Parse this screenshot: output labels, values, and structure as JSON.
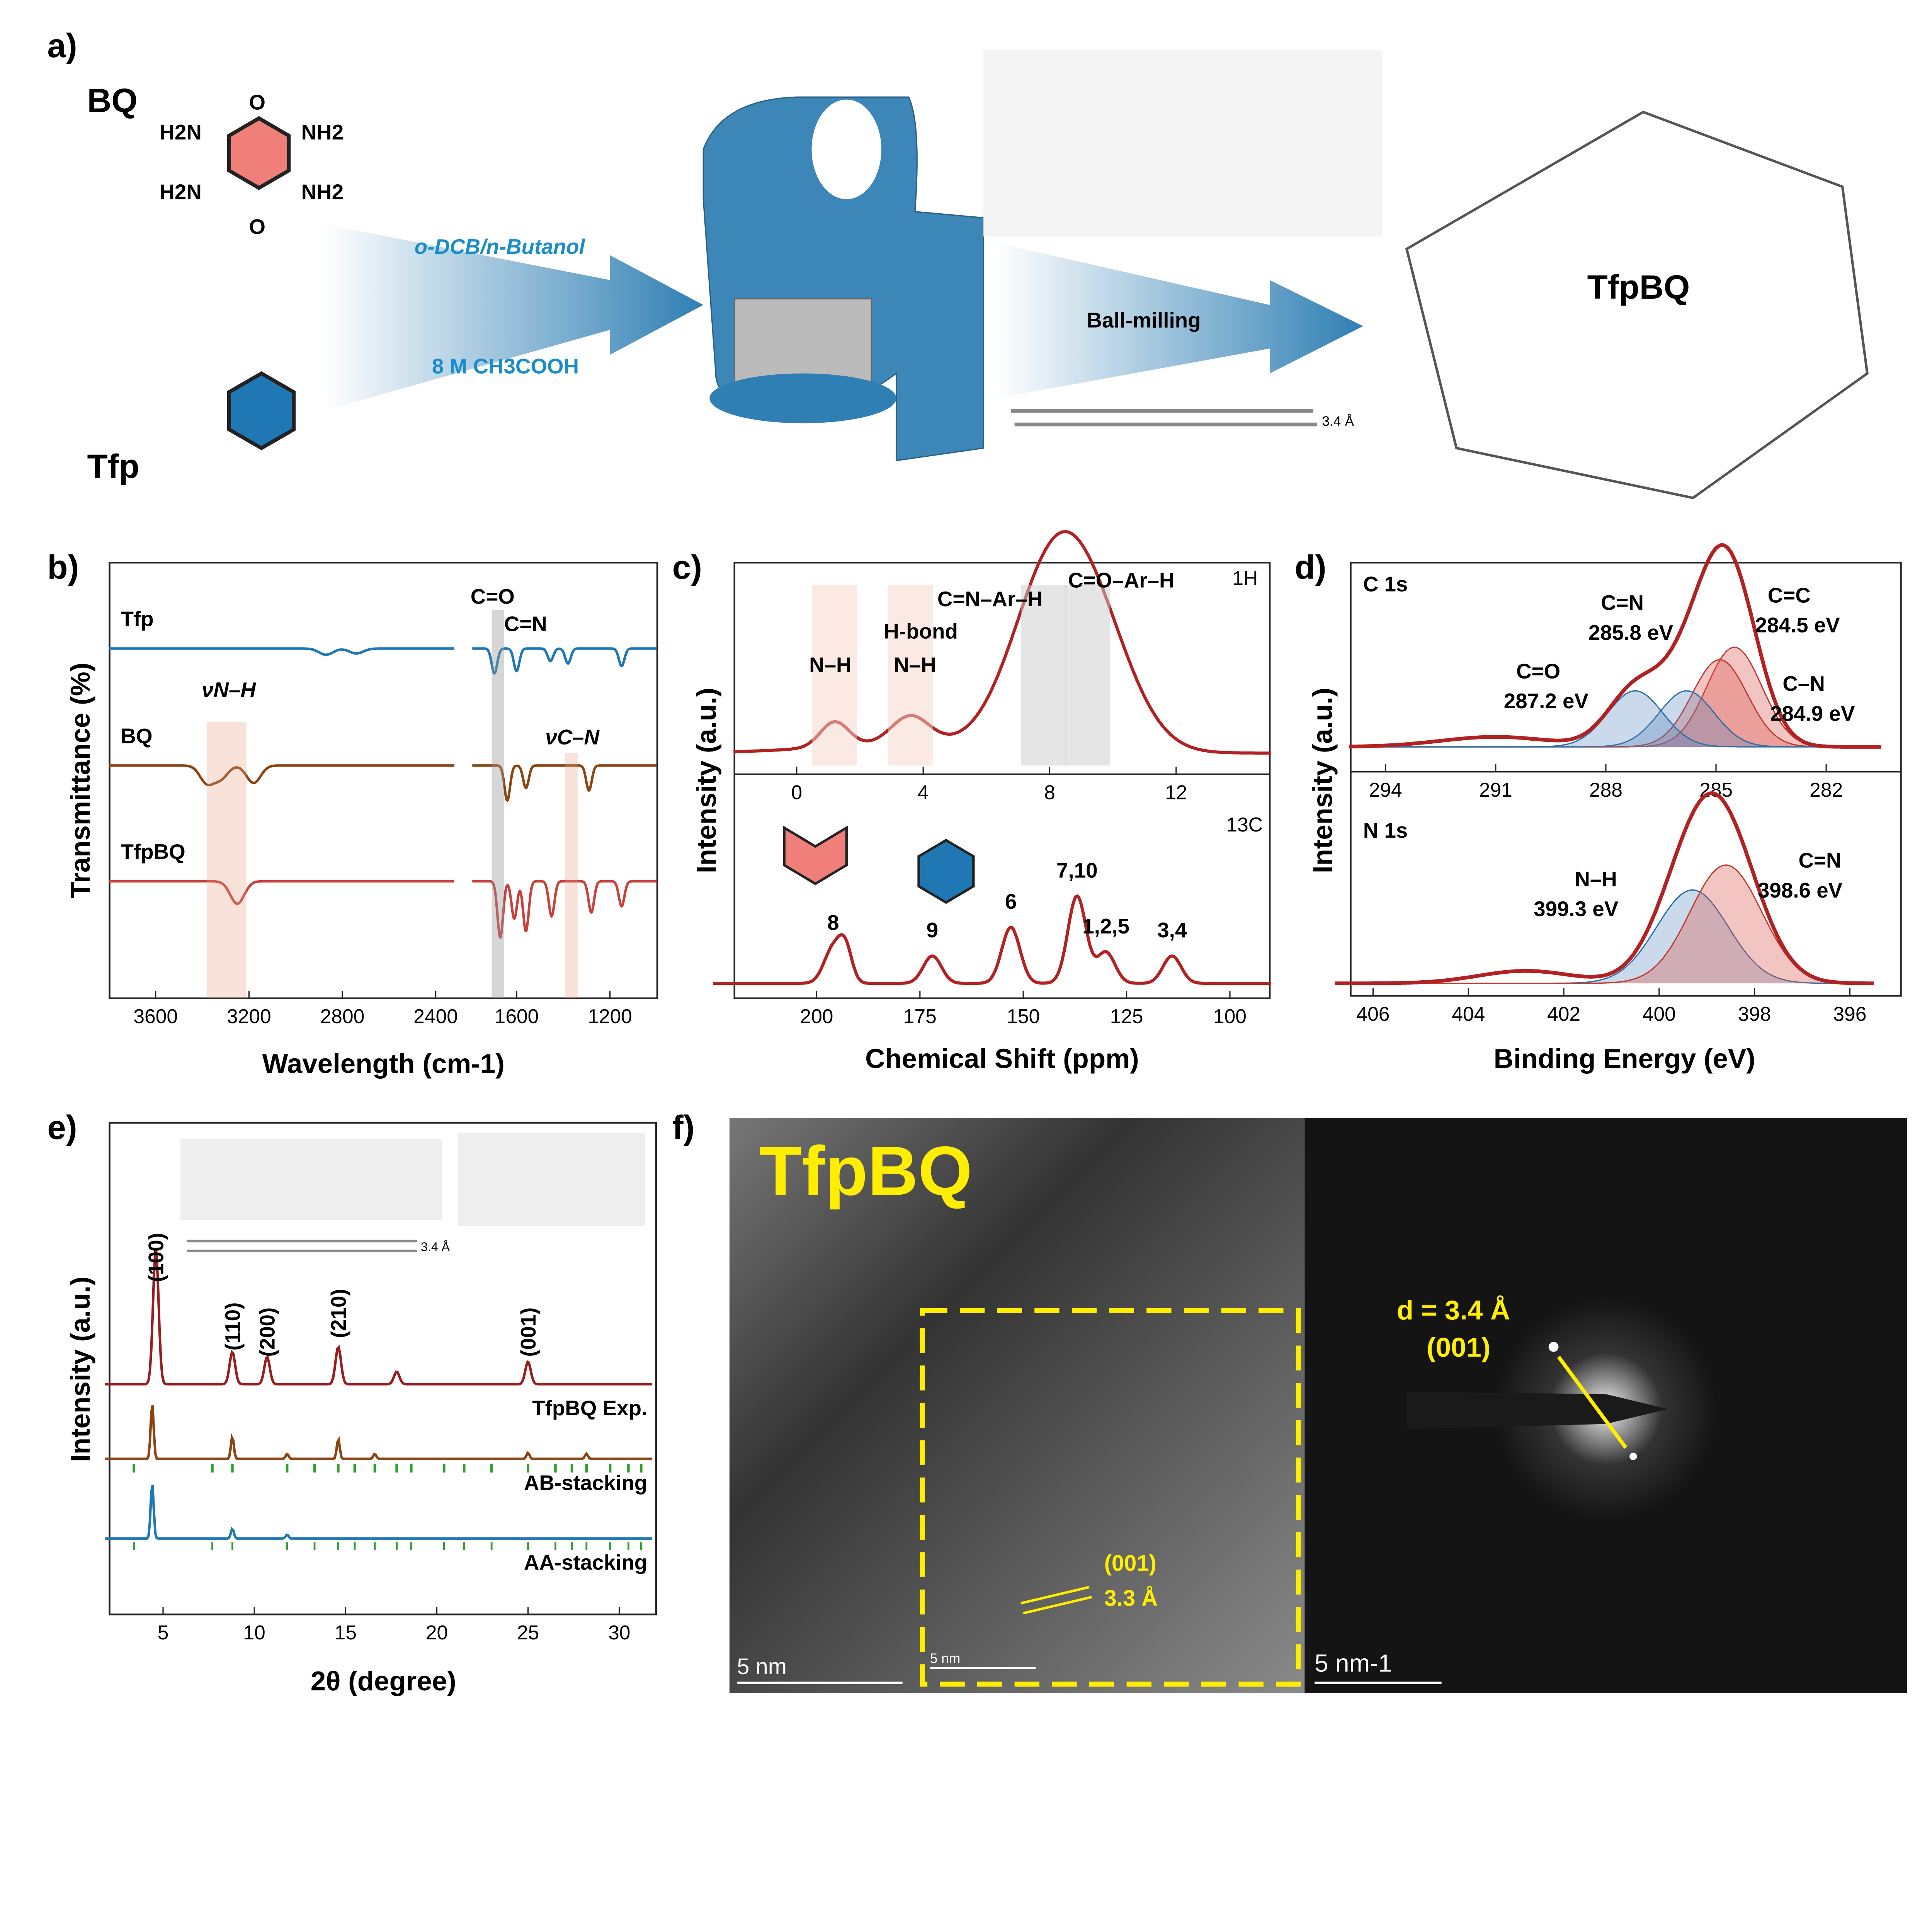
{
  "panel_a": {
    "label": "a)",
    "bq": "BQ",
    "tfp": "Tfp",
    "h2n": "H2N",
    "nh2": "NH2",
    "o": "O",
    "solvent": "o-DCB/n-Butanol",
    "acid": "8 M CH3COOH",
    "ball_milling": "Ball-milling",
    "product": "TfpBQ",
    "spacing": "3.4 Å",
    "colors": {
      "quinone": "#f07f7a",
      "benzene": "#1f78b4",
      "arrow": "#2f7fb4",
      "text_blue": "#1a8ccc"
    }
  },
  "chart_data": [
    {
      "id": "b",
      "label": "b)",
      "type": "line",
      "xlabel": "Wavelength (cm-1)",
      "ylabel": "Transmittance (%)",
      "xticks": [
        3600,
        3200,
        2800,
        2400,
        1600,
        1200
      ],
      "axis_break": true,
      "series": [
        {
          "name": "Tfp",
          "color": "#1f78b4",
          "dips_cm-1": [
            1695,
            1600,
            1455,
            1380,
            1150,
            2870,
            2740
          ]
        },
        {
          "name": "BQ",
          "color": "#8b4513",
          "dips_cm-1": [
            3380,
            3320,
            3180,
            1640,
            1560,
            1290
          ]
        },
        {
          "name": "TfpBQ",
          "color": "#c8413c",
          "dips_cm-1": [
            3250,
            1670,
            1610,
            1560,
            1450,
            1280,
            1150
          ]
        }
      ],
      "annotations": [
        "C=O",
        "C=N",
        "νN–H",
        "νC–N"
      ]
    },
    {
      "id": "c",
      "label": "c)",
      "type": "line",
      "xlabel": "Chemical Shift (ppm)",
      "ylabel": "Intensity (a.u.)",
      "subplots": [
        {
          "nucleus": "1H",
          "xticks": [
            0,
            4,
            8,
            12
          ],
          "peaks_ppm": [
            1.2,
            3.6,
            7.8,
            9.2
          ],
          "annotations": [
            "N–H",
            "H-bond N–H",
            "C=N–Ar–H",
            "C=O–Ar–H"
          ]
        },
        {
          "nucleus": "13C",
          "xticks": [
            200,
            175,
            150,
            125,
            100
          ],
          "peaks_ppm": [
            {
              "ppm": 196,
              "label": "8"
            },
            {
              "ppm": 172,
              "label": "9"
            },
            {
              "ppm": 153,
              "label": "6"
            },
            {
              "ppm": 137,
              "label": "7,10"
            },
            {
              "ppm": 130,
              "label": "1,2,5"
            },
            {
              "ppm": 114,
              "label": "3,4"
            }
          ]
        }
      ],
      "color": "#b22222"
    },
    {
      "id": "d",
      "label": "d)",
      "type": "line",
      "xlabel": "Binding Energy (eV)",
      "ylabel": "Intensity (a.u.)",
      "subplots": [
        {
          "name": "C 1s",
          "xticks": [
            294,
            291,
            288,
            285,
            282
          ],
          "components": [
            {
              "name": "C=C",
              "eV": 284.5
            },
            {
              "name": "C–N",
              "eV": 284.9
            },
            {
              "name": "C=N",
              "eV": 285.8
            },
            {
              "name": "C=O",
              "eV": 287.2
            }
          ],
          "labels": [
            "C=C 284.5 eV",
            "C–N 284.9 eV",
            "C=N 285.8 eV",
            "C=O 287.2 eV"
          ]
        },
        {
          "name": "N 1s",
          "xticks": [
            406,
            404,
            402,
            400,
            398,
            396
          ],
          "components": [
            {
              "name": "N–H",
              "eV": 399.3
            },
            {
              "name": "C=N",
              "eV": 398.6
            }
          ],
          "labels": [
            "N–H 399.3 eV",
            "C=N 398.6 eV"
          ]
        }
      ]
    },
    {
      "id": "e",
      "label": "e)",
      "type": "line",
      "xlabel": "2θ (degree)",
      "ylabel": "Intensity (a.u.)",
      "xticks": [
        5,
        10,
        15,
        20,
        25,
        30
      ],
      "series": [
        {
          "name": "TfpBQ Exp.",
          "color": "#9b1c1c",
          "peaks_deg": [
            4.6,
            8.8,
            10.7,
            14.6,
            17.8,
            25.0
          ]
        },
        {
          "name": "AB-stacking",
          "color": "#8b4513",
          "peaks_deg": [
            4.4,
            8.8,
            11.8,
            14.6,
            16.6,
            25.0,
            28.2
          ]
        },
        {
          "name": "AA-stacking",
          "color": "#1f78b4",
          "peaks_deg": [
            4.4,
            8.8,
            11.8
          ]
        }
      ],
      "peak_labels": [
        "(100)",
        "(110)",
        "(200)",
        "(210)",
        "(001)"
      ],
      "spacing": "3.4 Å"
    }
  ],
  "panel_f": {
    "label": "f)",
    "title": "TfpBQ",
    "scale_left": "5 nm",
    "scale_inset": "5 nm",
    "fringe_plane": "(001)",
    "fringe_spacing": "3.3 Å",
    "saed_d": "d = 3.4 Å",
    "saed_plane": "(001)",
    "scale_right": "5 nm-1"
  }
}
